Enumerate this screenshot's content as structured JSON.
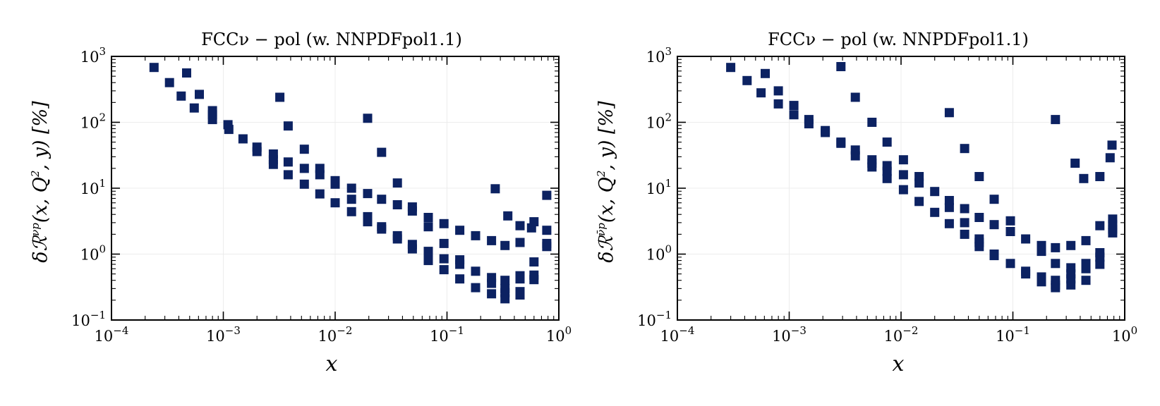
{
  "chart_data": [
    {
      "type": "scatter",
      "title": "FCCν − pol (w. NNPDFpol1.1)",
      "xlabel": "x",
      "ylabel": "δℛ^{νp}(x, Q², y) [%]",
      "ylabel_parts": {
        "prefix": "δℛ",
        "sup": "νp",
        "args": "(x, Q",
        "sup2": "2",
        "rest": ", y) [%]"
      },
      "xscale": "log",
      "yscale": "log",
      "xlim": [
        0.0001,
        1
      ],
      "ylim": [
        0.1,
        1000
      ],
      "xticks": [
        {
          "base": "10",
          "exp": "−4"
        },
        {
          "base": "10",
          "exp": "−3"
        },
        {
          "base": "10",
          "exp": "−2"
        },
        {
          "base": "10",
          "exp": "−1"
        },
        {
          "base": "10",
          "exp": "0"
        }
      ],
      "yticks": [
        {
          "base": "10",
          "exp": "−1"
        },
        {
          "base": "10",
          "exp": "0"
        },
        {
          "base": "10",
          "exp": "1"
        },
        {
          "base": "10",
          "exp": "2"
        },
        {
          "base": "10",
          "exp": "3"
        }
      ],
      "marker": "square",
      "marker_color": "#0c2262",
      "grid": true,
      "points": [
        [
          0.00024,
          680
        ],
        [
          0.00033,
          400
        ],
        [
          0.00042,
          250
        ],
        [
          0.00047,
          560
        ],
        [
          0.00055,
          165
        ],
        [
          0.00061,
          265
        ],
        [
          0.0008,
          150
        ],
        [
          0.0008,
          130
        ],
        [
          0.0008,
          110
        ],
        [
          0.0011,
          92
        ],
        [
          0.00112,
          78
        ],
        [
          0.0015,
          56
        ],
        [
          0.002,
          42
        ],
        [
          0.002,
          36
        ],
        [
          0.0028,
          33
        ],
        [
          0.0028,
          27
        ],
        [
          0.0028,
          23
        ],
        [
          0.0032,
          240
        ],
        [
          0.0038,
          88
        ],
        [
          0.0038,
          25
        ],
        [
          0.0038,
          16
        ],
        [
          0.0053,
          39
        ],
        [
          0.0053,
          20
        ],
        [
          0.0053,
          11.5
        ],
        [
          0.0073,
          20
        ],
        [
          0.0073,
          16
        ],
        [
          0.0073,
          8.2
        ],
        [
          0.01,
          13
        ],
        [
          0.01,
          11.5
        ],
        [
          0.01,
          6.0
        ],
        [
          0.014,
          10
        ],
        [
          0.014,
          6.8
        ],
        [
          0.014,
          4.4
        ],
        [
          0.0195,
          115
        ],
        [
          0.0195,
          8.3
        ],
        [
          0.0195,
          3.7
        ],
        [
          0.0195,
          3.1
        ],
        [
          0.026,
          35
        ],
        [
          0.026,
          6.8
        ],
        [
          0.026,
          2.6
        ],
        [
          0.026,
          2.4
        ],
        [
          0.036,
          12
        ],
        [
          0.036,
          5.6
        ],
        [
          0.036,
          1.9
        ],
        [
          0.036,
          1.7
        ],
        [
          0.049,
          5.2
        ],
        [
          0.049,
          4.5
        ],
        [
          0.049,
          1.4
        ],
        [
          0.049,
          1.2
        ],
        [
          0.068,
          3.6
        ],
        [
          0.068,
          2.6
        ],
        [
          0.068,
          1.1
        ],
        [
          0.068,
          0.9
        ],
        [
          0.068,
          0.8
        ],
        [
          0.094,
          2.9
        ],
        [
          0.094,
          1.45
        ],
        [
          0.094,
          0.85
        ],
        [
          0.094,
          0.58
        ],
        [
          0.13,
          2.3
        ],
        [
          0.13,
          0.82
        ],
        [
          0.13,
          0.7
        ],
        [
          0.13,
          0.42
        ],
        [
          0.18,
          1.9
        ],
        [
          0.18,
          0.55
        ],
        [
          0.18,
          0.31
        ],
        [
          0.25,
          1.6
        ],
        [
          0.25,
          0.44
        ],
        [
          0.25,
          0.36
        ],
        [
          0.25,
          0.25
        ],
        [
          0.27,
          9.8
        ],
        [
          0.33,
          1.35
        ],
        [
          0.33,
          0.4
        ],
        [
          0.33,
          0.3
        ],
        [
          0.33,
          0.26
        ],
        [
          0.33,
          0.21
        ],
        [
          0.35,
          3.8
        ],
        [
          0.45,
          2.7
        ],
        [
          0.45,
          1.5
        ],
        [
          0.45,
          0.47
        ],
        [
          0.45,
          0.42
        ],
        [
          0.45,
          0.27
        ],
        [
          0.45,
          0.24
        ],
        [
          0.57,
          2.5
        ],
        [
          0.6,
          3.1
        ],
        [
          0.6,
          0.76
        ],
        [
          0.6,
          0.48
        ],
        [
          0.6,
          0.41
        ],
        [
          0.78,
          7.8
        ],
        [
          0.78,
          2.3
        ],
        [
          0.78,
          1.45
        ],
        [
          0.78,
          1.3
        ]
      ]
    },
    {
      "type": "scatter",
      "title": "FCCν − pol (w. NNPDFpol1.1)",
      "xlabel": "x",
      "ylabel": "δℛ^{ν̄p}(x, Q², y) [%]",
      "ylabel_parts": {
        "prefix": "δℛ",
        "sup": "ν̄p",
        "args": "(x, Q",
        "sup2": "2",
        "rest": ", y) [%]"
      },
      "xscale": "log",
      "yscale": "log",
      "xlim": [
        0.0001,
        1
      ],
      "ylim": [
        0.1,
        1000
      ],
      "xticks": [
        {
          "base": "10",
          "exp": "−4"
        },
        {
          "base": "10",
          "exp": "−3"
        },
        {
          "base": "10",
          "exp": "−2"
        },
        {
          "base": "10",
          "exp": "−1"
        },
        {
          "base": "10",
          "exp": "0"
        }
      ],
      "yticks": [
        {
          "base": "10",
          "exp": "−1"
        },
        {
          "base": "10",
          "exp": "0"
        },
        {
          "base": "10",
          "exp": "1"
        },
        {
          "base": "10",
          "exp": "2"
        },
        {
          "base": "10",
          "exp": "3"
        }
      ],
      "marker": "square",
      "marker_color": "#0c2262",
      "grid": true,
      "points": [
        [
          0.0003,
          680
        ],
        [
          0.00042,
          430
        ],
        [
          0.00056,
          280
        ],
        [
          0.00061,
          550
        ],
        [
          0.0008,
          300
        ],
        [
          0.0008,
          190
        ],
        [
          0.0011,
          180
        ],
        [
          0.0011,
          130
        ],
        [
          0.0015,
          110
        ],
        [
          0.0015,
          95
        ],
        [
          0.0021,
          75
        ],
        [
          0.0021,
          70
        ],
        [
          0.0029,
          700
        ],
        [
          0.0029,
          50
        ],
        [
          0.0029,
          48
        ],
        [
          0.0039,
          240
        ],
        [
          0.0039,
          38
        ],
        [
          0.0039,
          31
        ],
        [
          0.0055,
          100
        ],
        [
          0.0055,
          27
        ],
        [
          0.0055,
          24
        ],
        [
          0.0055,
          21
        ],
        [
          0.0075,
          50
        ],
        [
          0.0075,
          22
        ],
        [
          0.0075,
          18
        ],
        [
          0.0075,
          14
        ],
        [
          0.0105,
          27
        ],
        [
          0.0105,
          16
        ],
        [
          0.0105,
          9.5
        ],
        [
          0.0145,
          15
        ],
        [
          0.0145,
          12
        ],
        [
          0.0145,
          6.3
        ],
        [
          0.02,
          8.9
        ],
        [
          0.02,
          4.3
        ],
        [
          0.027,
          140
        ],
        [
          0.027,
          6.5
        ],
        [
          0.027,
          5.1
        ],
        [
          0.027,
          2.9
        ],
        [
          0.037,
          40
        ],
        [
          0.037,
          4.9
        ],
        [
          0.037,
          3.0
        ],
        [
          0.037,
          2.0
        ],
        [
          0.05,
          15
        ],
        [
          0.05,
          3.6
        ],
        [
          0.05,
          1.7
        ],
        [
          0.05,
          1.5
        ],
        [
          0.05,
          1.3
        ],
        [
          0.068,
          6.8
        ],
        [
          0.068,
          2.8
        ],
        [
          0.068,
          1.0
        ],
        [
          0.068,
          0.95
        ],
        [
          0.095,
          3.2
        ],
        [
          0.095,
          2.2
        ],
        [
          0.095,
          0.72
        ],
        [
          0.13,
          1.7
        ],
        [
          0.13,
          0.55
        ],
        [
          0.13,
          0.5
        ],
        [
          0.18,
          1.35
        ],
        [
          0.18,
          1.1
        ],
        [
          0.18,
          0.45
        ],
        [
          0.18,
          0.38
        ],
        [
          0.24,
          110
        ],
        [
          0.24,
          1.25
        ],
        [
          0.24,
          0.72
        ],
        [
          0.24,
          0.4
        ],
        [
          0.24,
          0.34
        ],
        [
          0.24,
          0.31
        ],
        [
          0.33,
          1.35
        ],
        [
          0.33,
          0.62
        ],
        [
          0.33,
          0.5
        ],
        [
          0.33,
          0.42
        ],
        [
          0.33,
          0.34
        ],
        [
          0.36,
          24
        ],
        [
          0.43,
          14
        ],
        [
          0.45,
          1.6
        ],
        [
          0.45,
          0.72
        ],
        [
          0.45,
          0.6
        ],
        [
          0.45,
          0.4
        ],
        [
          0.6,
          15
        ],
        [
          0.6,
          2.7
        ],
        [
          0.6,
          1.05
        ],
        [
          0.6,
          0.9
        ],
        [
          0.6,
          0.7
        ],
        [
          0.77,
          45
        ],
        [
          0.74,
          29
        ],
        [
          0.78,
          3.4
        ],
        [
          0.78,
          2.8
        ],
        [
          0.78,
          2.4
        ],
        [
          0.78,
          2.1
        ]
      ]
    }
  ]
}
